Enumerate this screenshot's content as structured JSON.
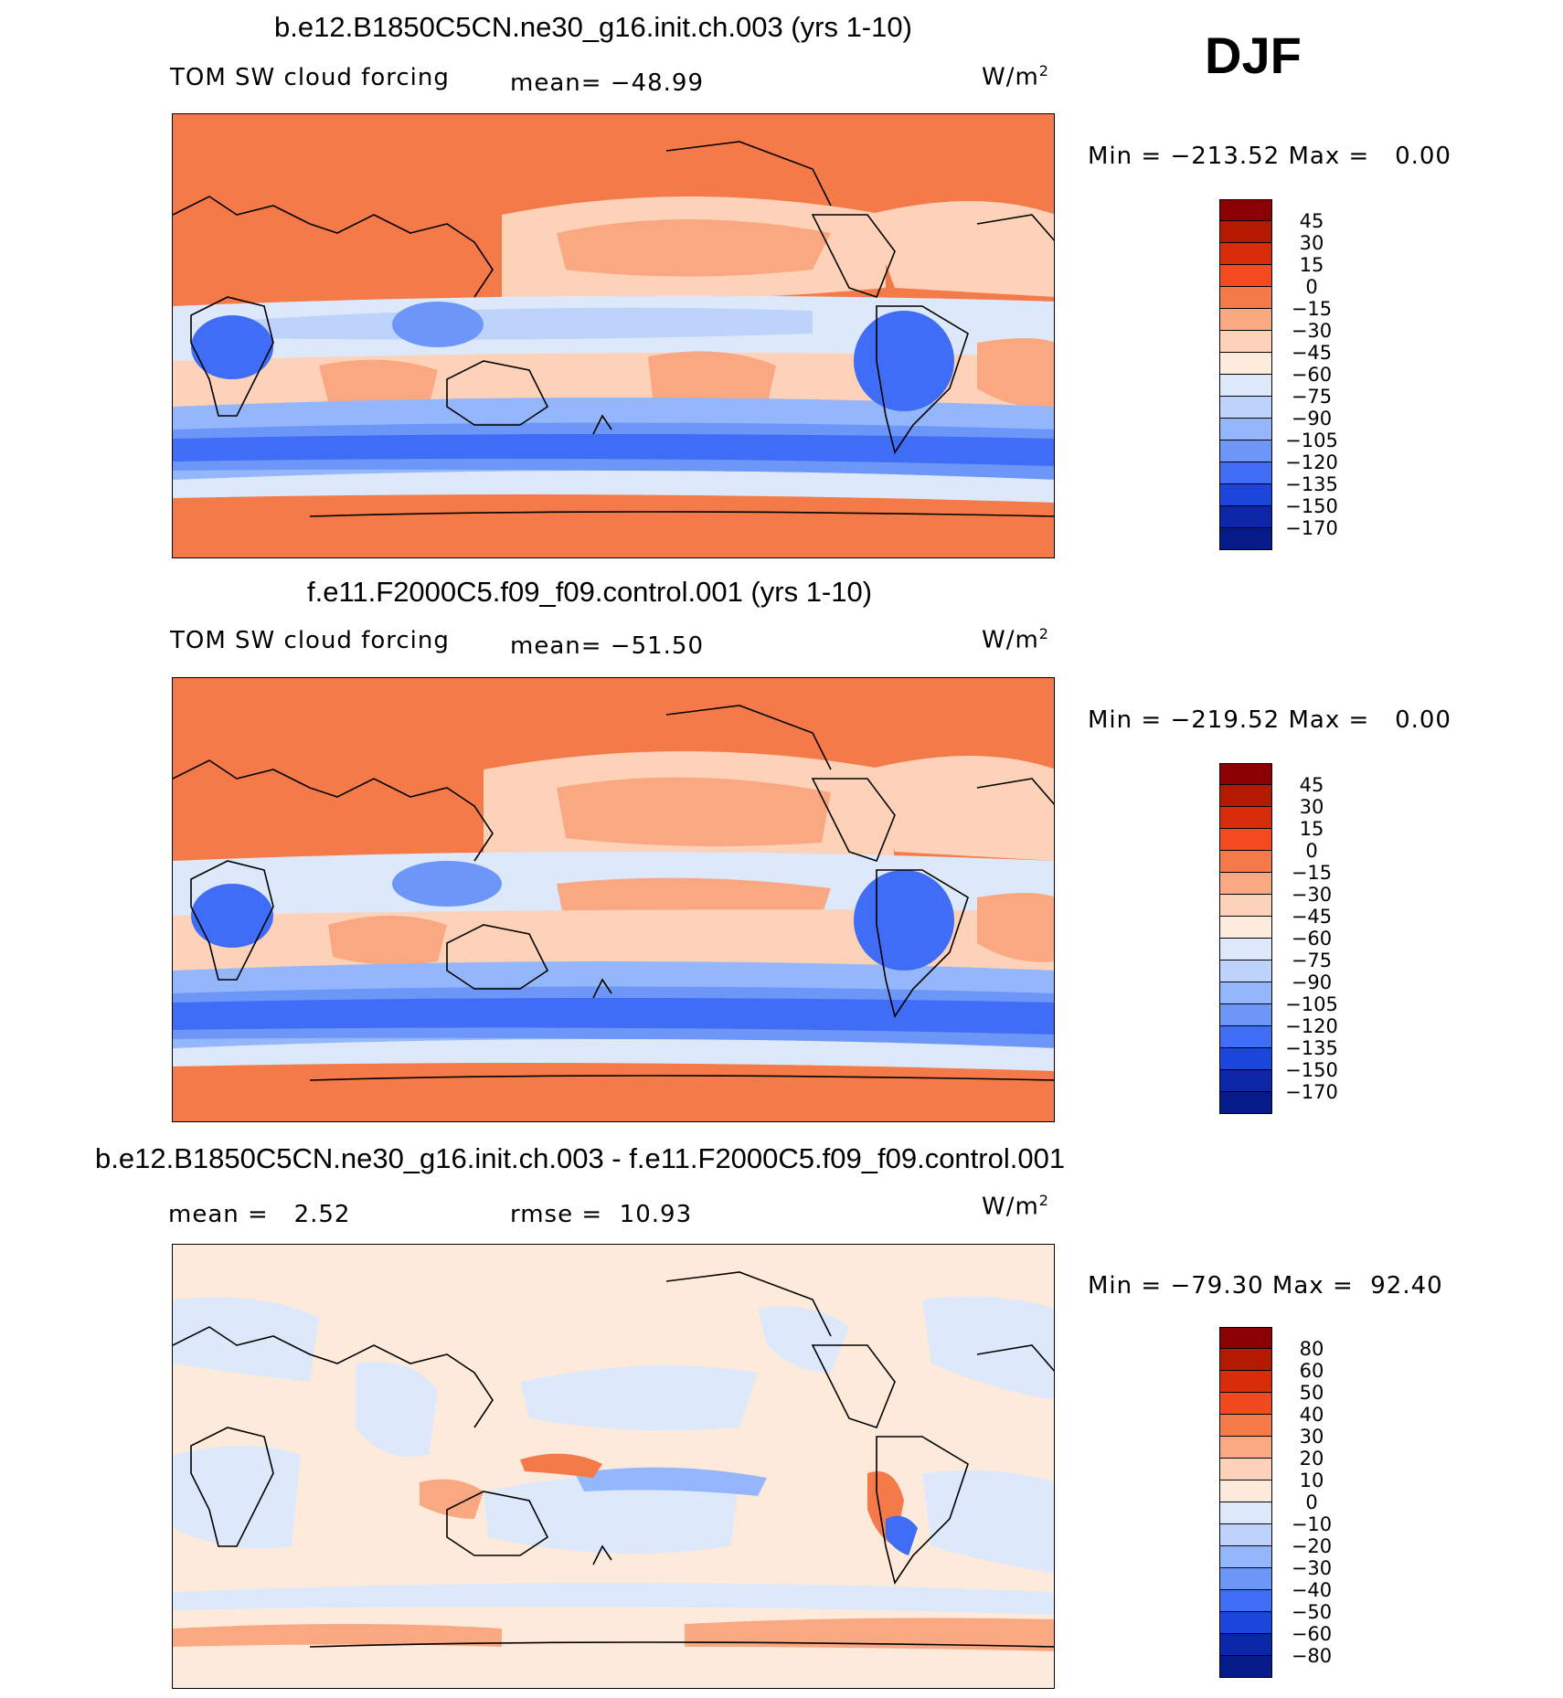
{
  "season": "DJF",
  "units_base": "W/m",
  "units_exp": "2",
  "panels": [
    {
      "title": "b.e12.B1850C5CN.ne30_g16.init.ch.003 (yrs 1-10)",
      "left_label": "TOM SW cloud forcing",
      "stat_label": "mean= −48.99",
      "minmax": "Min = −213.52 Max =   0.00",
      "cbar_labels": [
        "45",
        "30",
        "15",
        "0",
        "−15",
        "−30",
        "−45",
        "−60",
        "−75",
        "−90",
        "−105",
        "−120",
        "−135",
        "−150",
        "−170"
      ]
    },
    {
      "title": "f.e11.F2000C5.f09_f09.control.001 (yrs 1-10)",
      "left_label": "TOM SW cloud forcing",
      "stat_label": "mean= −51.50",
      "minmax": "Min = −219.52 Max =   0.00",
      "cbar_labels": [
        "45",
        "30",
        "15",
        "0",
        "−15",
        "−30",
        "−45",
        "−60",
        "−75",
        "−90",
        "−105",
        "−120",
        "−135",
        "−150",
        "−170"
      ]
    },
    {
      "title": "b.e12.B1850C5CN.ne30_g16.init.ch.003 - f.e11.F2000C5.f09_f09.control.001",
      "left_label": "mean =   2.52",
      "stat_label": "rmse =  10.93",
      "minmax": "Min = −79.30 Max =  92.40",
      "cbar_labels": [
        "80",
        "60",
        "50",
        "40",
        "30",
        "20",
        "10",
        "0",
        "−10",
        "−20",
        "−30",
        "−40",
        "−50",
        "−60",
        "−80"
      ]
    }
  ],
  "colors": {
    "abs_scale": [
      "#8b0000",
      "#b31a00",
      "#d82d0a",
      "#f34a1f",
      "#f47a4a",
      "#f9a882",
      "#fdd2b8",
      "#fdecdc",
      "#dde9fb",
      "#bdd3fb",
      "#94b6fb",
      "#6c97f8",
      "#3f6df5",
      "#1c45dc",
      "#0c26a8",
      "#061b8a"
    ],
    "diff_scale": [
      "#8b0000",
      "#b31a00",
      "#d82d0a",
      "#f04a1e",
      "#f47a4a",
      "#f9a882",
      "#fdd2b8",
      "#fdeadb",
      "#dde9fb",
      "#bdd3fb",
      "#94b6fb",
      "#6c97f8",
      "#3f6df5",
      "#1c45dc",
      "#0c26a8",
      "#061b8a"
    ]
  }
}
